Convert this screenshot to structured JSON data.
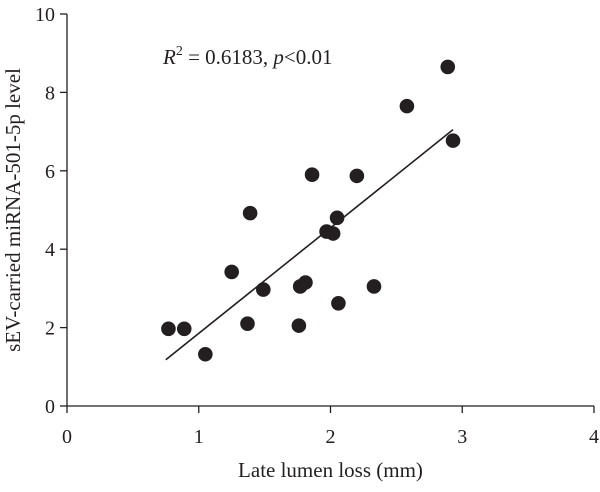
{
  "chart_data": {
    "type": "scatter",
    "xlabel": "Late lumen loss (mm)",
    "ylabel": "sEV-carried miRNA-501-5p level",
    "xlim": [
      0,
      4
    ],
    "ylim": [
      0,
      10
    ],
    "xticks": [
      0,
      1,
      2,
      3,
      4
    ],
    "yticks": [
      0,
      2,
      4,
      6,
      8,
      10
    ],
    "grid": false,
    "annotation": {
      "r_symbol": "R",
      "r_exponent": "2",
      "r_value": " = 0.6183, ",
      "p_symbol": "p",
      "p_value": "<0.01"
    },
    "points": [
      {
        "x": 0.77,
        "y": 1.97
      },
      {
        "x": 0.89,
        "y": 1.97
      },
      {
        "x": 1.05,
        "y": 1.32
      },
      {
        "x": 1.25,
        "y": 3.42
      },
      {
        "x": 1.37,
        "y": 2.1
      },
      {
        "x": 1.39,
        "y": 4.92
      },
      {
        "x": 1.49,
        "y": 2.97
      },
      {
        "x": 1.76,
        "y": 2.05
      },
      {
        "x": 1.77,
        "y": 3.05
      },
      {
        "x": 1.81,
        "y": 3.15
      },
      {
        "x": 1.86,
        "y": 5.9
      },
      {
        "x": 1.97,
        "y": 4.45
      },
      {
        "x": 2.02,
        "y": 4.4
      },
      {
        "x": 2.05,
        "y": 4.8
      },
      {
        "x": 2.06,
        "y": 2.62
      },
      {
        "x": 2.2,
        "y": 5.87
      },
      {
        "x": 2.33,
        "y": 3.05
      },
      {
        "x": 2.58,
        "y": 7.65
      },
      {
        "x": 2.89,
        "y": 8.65
      },
      {
        "x": 2.93,
        "y": 6.77
      }
    ],
    "fit_line": {
      "x": [
        0.75,
        2.93
      ],
      "y": [
        1.18,
        7.05
      ]
    }
  }
}
